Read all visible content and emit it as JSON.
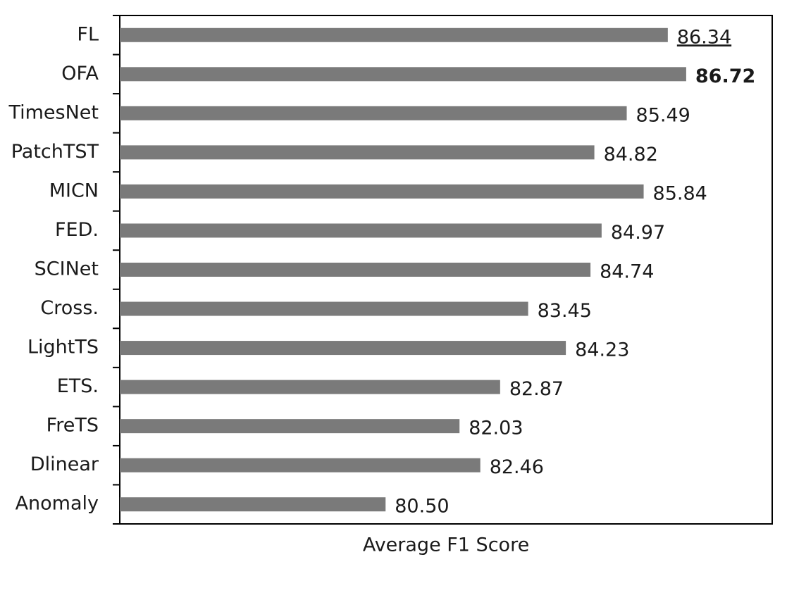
{
  "chart_data": {
    "type": "hbar",
    "xlabel": "Average F1 Score",
    "categories": [
      "FL",
      "OFA",
      "TimesNet",
      "PatchTST",
      "MICN",
      "FED.",
      "SCINet",
      "Cross.",
      "LightTS",
      "ETS.",
      "FreTS",
      "Dlinear",
      "Anomaly"
    ],
    "values": [
      86.34,
      86.72,
      85.49,
      84.82,
      85.84,
      84.97,
      84.74,
      83.45,
      84.23,
      82.87,
      82.03,
      82.46,
      80.5
    ],
    "value_labels": [
      "86.34",
      "86.72",
      "85.49",
      "84.82",
      "85.84",
      "84.97",
      "84.74",
      "83.45",
      "84.23",
      "82.87",
      "82.03",
      "82.46",
      "80.50"
    ],
    "color": "#7a7a7a",
    "xlim": [
      75,
      88.5
    ]
  }
}
